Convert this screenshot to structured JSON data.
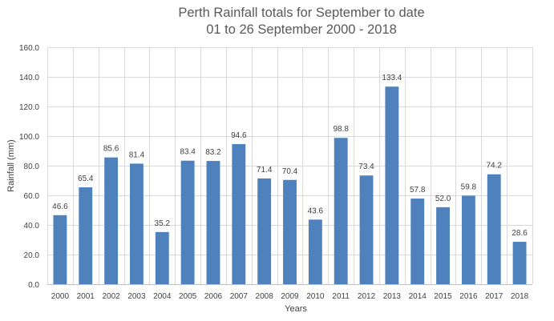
{
  "chart_data": {
    "type": "bar",
    "title": "Perth Rainfall totals for September to date",
    "subtitle": "01 to 26 September 2000 - 2018",
    "xlabel": "Years",
    "ylabel": "Rainfall (mm)",
    "ylim": [
      0,
      160
    ],
    "ytick_step": 20,
    "ytick_labels": [
      "0.0",
      "20.0",
      "40.0",
      "60.0",
      "80.0",
      "100.0",
      "120.0",
      "140.0",
      "160.0"
    ],
    "grid": true,
    "bar_color": "#4f81bd",
    "categories": [
      "2000",
      "2001",
      "2002",
      "2003",
      "2004",
      "2005",
      "2006",
      "2007",
      "2008",
      "2009",
      "2010",
      "2011",
      "2012",
      "2013",
      "2014",
      "2015",
      "2016",
      "2017",
      "2018"
    ],
    "values": [
      46.6,
      65.4,
      85.6,
      81.4,
      35.2,
      83.4,
      83.2,
      94.6,
      71.4,
      70.4,
      43.6,
      98.8,
      73.4,
      133.4,
      57.8,
      52.0,
      59.8,
      74.2,
      28.6
    ],
    "value_labels": [
      "46.6",
      "65.4",
      "85.6",
      "81.4",
      "35.2",
      "83.4",
      "83.2",
      "94.6",
      "71.4",
      "70.4",
      "43.6",
      "98.8",
      "73.4",
      "133.4",
      "57.8",
      "52.0",
      "59.8",
      "74.2",
      "28.6"
    ]
  }
}
